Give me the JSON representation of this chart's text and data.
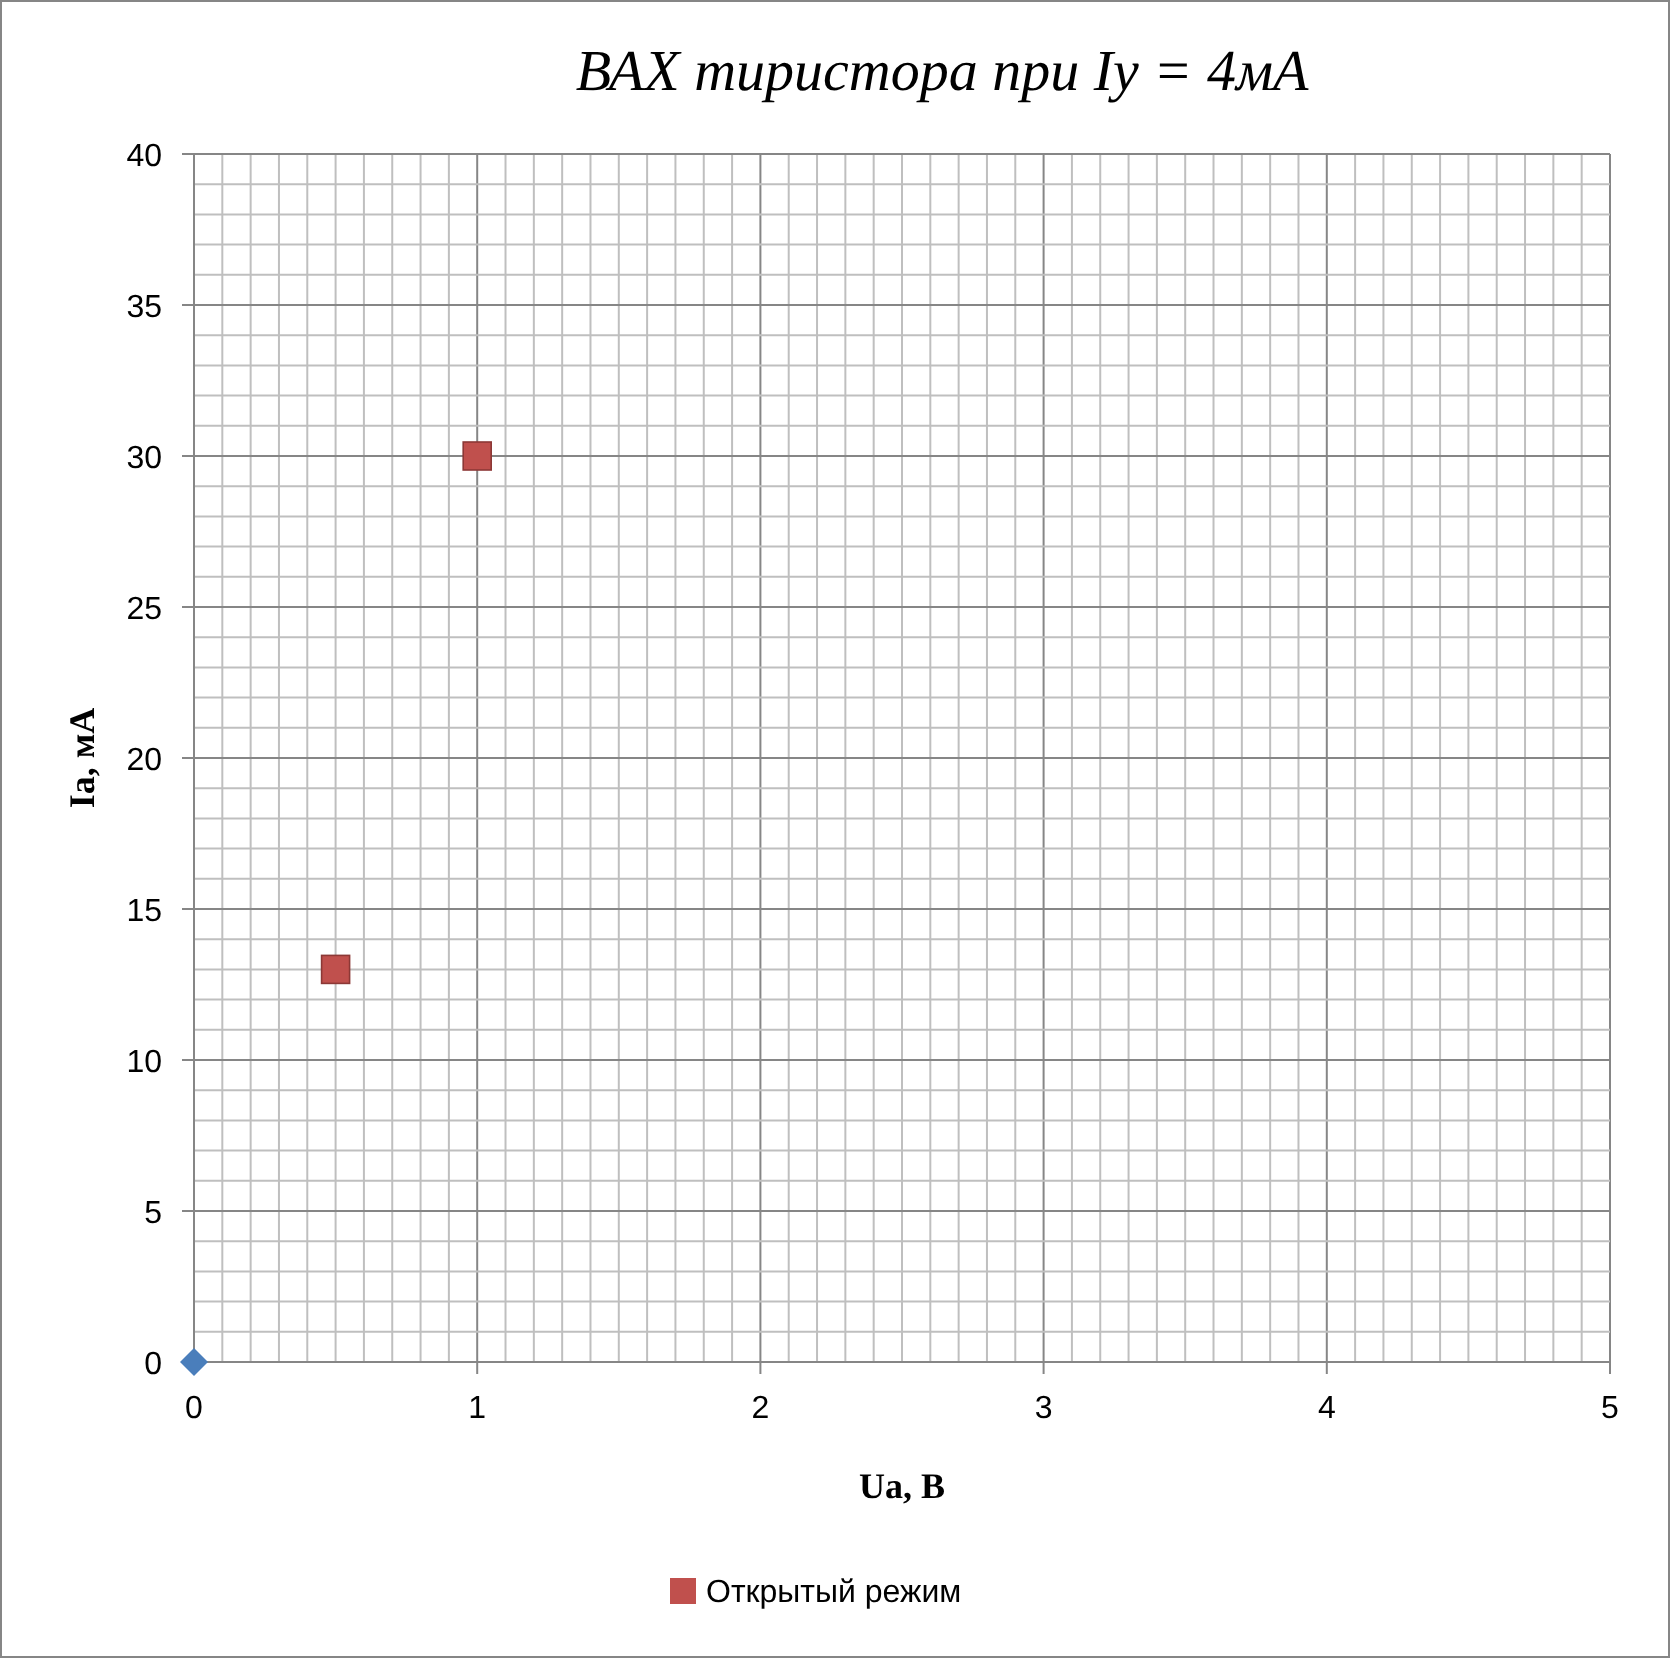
{
  "chart_data": {
    "type": "scatter",
    "title": "ВАХ тиристора  при Iу = 4мА",
    "xlabel": "Ua, В",
    "ylabel": "Ia, мА",
    "series": [
      {
        "color": "#4a7ebb",
        "marker": "diamond",
        "x": [
          0
        ],
        "values": [
          0
        ]
      },
      {
        "name": "Открытый режим",
        "color": "#c0504d",
        "marker": "square",
        "x": [
          0.5,
          1
        ],
        "values": [
          13,
          30
        ]
      }
    ],
    "xlim": [
      0,
      5
    ],
    "ylim": [
      0,
      40
    ],
    "xticks": [
      0,
      {
        "value": 0.1,
        "label": null
      },
      {
        "value": 0.2,
        "label": null
      },
      {
        "value": 0.3,
        "label": null
      },
      {
        "value": 0.4,
        "label": null
      },
      {
        "value": 0.5,
        "label": null
      },
      {
        "value": 0.6,
        "label": null
      },
      {
        "value": 0.7,
        "label": null
      },
      {
        "value": 0.8,
        "label": null
      },
      {
        "value": 0.9,
        "label": null
      },
      1,
      {
        "value": 1.1,
        "label": null
      },
      {
        "value": 1.2,
        "label": null
      },
      {
        "value": 1.3,
        "label": null
      },
      {
        "value": 1.4,
        "label": null
      },
      {
        "value": 1.5,
        "label": null
      },
      {
        "value": 1.6,
        "label": null
      },
      {
        "value": 1.7,
        "label": null
      },
      {
        "value": 1.8,
        "label": null
      },
      {
        "value": 1.9,
        "label": null
      },
      2,
      {
        "value": 2.1,
        "label": null
      },
      {
        "value": 2.2,
        "label": null
      },
      {
        "value": 2.3,
        "label": null
      },
      {
        "value": 2.4,
        "label": null
      },
      {
        "value": 2.5,
        "label": null
      },
      {
        "value": 2.6,
        "label": null
      },
      {
        "value": 2.7,
        "label": null
      },
      {
        "value": 2.8,
        "label": null
      },
      {
        "value": 2.9,
        "label": null
      },
      3,
      {
        "value": 3.1,
        "label": null
      },
      {
        "value": 3.2,
        "label": null
      },
      {
        "value": 3.3,
        "label": null
      },
      {
        "value": 3.4,
        "label": null
      },
      {
        "value": 3.5,
        "label": null
      },
      {
        "value": 3.6,
        "label": null
      },
      {
        "value": 3.7,
        "label": null
      },
      {
        "value": 3.8,
        "label": null
      },
      {
        "value": 3.9,
        "label": null
      },
      4,
      {
        "value": 4.1,
        "label": null
      },
      {
        "value": 4.2,
        "label": null
      },
      {
        "value": 4.3,
        "label": null
      },
      {
        "value": 4.4,
        "label": null
      },
      {
        "value": 4.5,
        "label": null
      },
      {
        "value": 4.6,
        "label": null
      },
      {
        "value": 4.7,
        "label": null
      },
      {
        "value": 4.8,
        "label": null
      },
      {
        "value": 4.9,
        "label": null
      },
      5
    ],
    "yticks": [
      0,
      {
        "value": 1,
        "label": null
      },
      {
        "value": 2,
        "label": null
      },
      {
        "value": 3,
        "label": null
      },
      {
        "value": 4,
        "label": null
      },
      5,
      {
        "value": 6,
        "label": null
      },
      {
        "value": 7,
        "label": null
      },
      {
        "value": 8,
        "label": null
      },
      {
        "value": 9,
        "label": null
      },
      10,
      {
        "value": 11,
        "label": null
      },
      {
        "value": 12,
        "label": null
      },
      {
        "value": 13,
        "label": null
      },
      {
        "value": 14,
        "label": null
      },
      15,
      {
        "value": 16,
        "label": null
      },
      {
        "value": 17,
        "label": null
      },
      {
        "value": 18,
        "label": null
      },
      {
        "value": 19,
        "label": null
      },
      20,
      {
        "value": 21,
        "label": null
      },
      {
        "value": 22,
        "label": null
      },
      {
        "value": 23,
        "label": null
      },
      {
        "value": 24,
        "label": null
      },
      25,
      {
        "value": 26,
        "label": null
      },
      {
        "value": 27,
        "label": null
      },
      {
        "value": 28,
        "label": null
      },
      {
        "value": 29,
        "label": null
      },
      30,
      {
        "value": 31,
        "label": null
      },
      {
        "value": 32,
        "label": null
      },
      {
        "value": 33,
        "label": null
      },
      {
        "value": 34,
        "label": null
      },
      35,
      {
        "value": 36,
        "label": null
      },
      {
        "value": 37,
        "label": null
      },
      {
        "value": 38,
        "label": null
      },
      {
        "value": 39,
        "label": null
      },
      40
    ],
    "grid": true,
    "legend": "bottom"
  }
}
